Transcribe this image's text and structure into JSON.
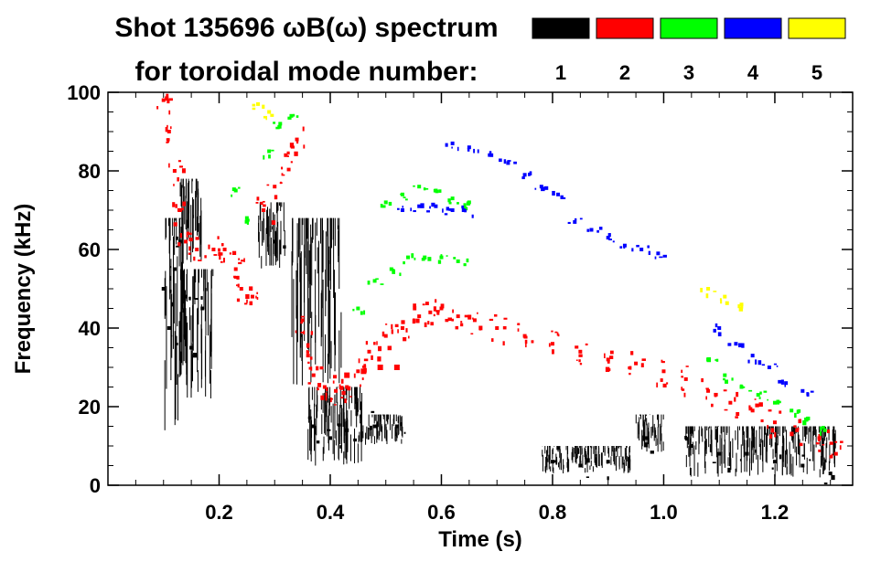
{
  "chart_data": {
    "type": "scatter",
    "title_line1": "Shot 135696 ωB(ω) spectrum",
    "title_line2": "for toroidal mode number:",
    "xlabel": "Time (s)",
    "ylabel": "Frequency (kHz)",
    "xlim": [
      0.0,
      1.34
    ],
    "ylim": [
      0,
      100
    ],
    "x_ticks": [
      0.2,
      0.4,
      0.6,
      0.8,
      1.0,
      1.2
    ],
    "x_tick_labels": [
      "0.2",
      "0.4",
      "0.6",
      "0.8",
      "1.0",
      "1.2"
    ],
    "y_ticks": [
      0,
      20,
      40,
      60,
      80,
      100
    ],
    "y_tick_labels": [
      "0",
      "20",
      "40",
      "60",
      "80",
      "100"
    ],
    "grid": false,
    "legend": [
      {
        "label": "1",
        "color": "#000000"
      },
      {
        "label": "2",
        "color": "#ff0000"
      },
      {
        "label": "3",
        "color": "#00ff00"
      },
      {
        "label": "4",
        "color": "#0000ff"
      },
      {
        "label": "5",
        "color": "#ffff00"
      }
    ],
    "series": [
      {
        "name": "n=1",
        "color": "#000000",
        "style": "noisy",
        "clusters": [
          {
            "x": [
              0.1,
              0.14
            ],
            "y": [
              12,
              68
            ]
          },
          {
            "x": [
              0.13,
              0.19
            ],
            "y": [
              22,
              55
            ]
          },
          {
            "x": [
              0.13,
              0.17
            ],
            "y": [
              55,
              78
            ]
          },
          {
            "x": [
              0.27,
              0.32
            ],
            "y": [
              55,
              72
            ]
          },
          {
            "x": [
              0.33,
              0.42
            ],
            "y": [
              25,
              68
            ]
          },
          {
            "x": [
              0.36,
              0.46
            ],
            "y": [
              5,
              25
            ]
          },
          {
            "x": [
              0.45,
              0.53
            ],
            "y": [
              10,
              18
            ]
          },
          {
            "x": [
              0.78,
              0.94
            ],
            "y": [
              3,
              10
            ]
          },
          {
            "x": [
              0.95,
              1.0
            ],
            "y": [
              8,
              18
            ]
          },
          {
            "x": [
              1.04,
              1.31
            ],
            "y": [
              2,
              15
            ]
          }
        ],
        "points": [
          [
            0.1,
            50
          ],
          [
            0.11,
            40
          ],
          [
            0.12,
            55
          ],
          [
            0.13,
            62
          ],
          [
            0.14,
            48
          ],
          [
            0.15,
            35
          ],
          [
            0.17,
            45
          ],
          [
            0.3,
            62
          ],
          [
            0.37,
            15
          ],
          [
            0.4,
            12
          ],
          [
            0.43,
            14
          ],
          [
            0.48,
            15
          ],
          [
            0.52,
            15
          ],
          [
            0.8,
            6
          ],
          [
            0.85,
            5
          ],
          [
            0.9,
            6
          ],
          [
            0.97,
            12
          ],
          [
            1.05,
            10
          ],
          [
            1.1,
            8
          ],
          [
            1.15,
            8
          ],
          [
            1.2,
            6
          ],
          [
            1.25,
            5
          ],
          [
            1.3,
            3
          ]
        ]
      },
      {
        "name": "n=2",
        "color": "#ff0000",
        "style": "band",
        "points": [
          [
            0.1,
            98
          ],
          [
            0.11,
            90
          ],
          [
            0.12,
            80
          ],
          [
            0.13,
            70
          ],
          [
            0.14,
            62
          ],
          [
            0.16,
            60
          ],
          [
            0.19,
            60
          ],
          [
            0.21,
            60
          ],
          [
            0.23,
            55
          ],
          [
            0.24,
            50
          ],
          [
            0.26,
            48
          ],
          [
            0.28,
            70
          ],
          [
            0.3,
            76
          ],
          [
            0.32,
            84
          ],
          [
            0.34,
            88
          ],
          [
            0.35,
            42
          ],
          [
            0.36,
            33
          ],
          [
            0.37,
            28
          ],
          [
            0.39,
            25
          ],
          [
            0.41,
            24
          ],
          [
            0.43,
            25
          ],
          [
            0.45,
            29
          ],
          [
            0.47,
            34
          ],
          [
            0.5,
            38
          ],
          [
            0.53,
            40
          ],
          [
            0.56,
            43
          ],
          [
            0.58,
            44
          ],
          [
            0.6,
            45
          ],
          [
            0.63,
            43
          ],
          [
            0.66,
            42
          ],
          [
            0.7,
            40
          ],
          [
            0.75,
            38
          ],
          [
            0.8,
            36
          ],
          [
            0.85,
            34
          ],
          [
            0.9,
            32
          ],
          [
            0.95,
            31
          ],
          [
            1.0,
            29
          ],
          [
            1.04,
            27
          ],
          [
            1.08,
            24
          ],
          [
            1.12,
            21
          ],
          [
            1.16,
            19
          ],
          [
            1.2,
            16
          ],
          [
            1.24,
            14
          ],
          [
            1.28,
            12
          ],
          [
            1.31,
            8
          ]
        ],
        "band_points": [
          [
            0.43,
            28
          ],
          [
            0.46,
            29
          ],
          [
            0.49,
            30
          ],
          [
            0.52,
            30
          ]
        ]
      },
      {
        "name": "n=3",
        "color": "#00ff00",
        "style": "trace",
        "points": [
          [
            0.23,
            75
          ],
          [
            0.25,
            68
          ],
          [
            0.29,
            85
          ],
          [
            0.31,
            92
          ],
          [
            0.33,
            94
          ],
          [
            0.45,
            45
          ],
          [
            0.48,
            52
          ],
          [
            0.51,
            55
          ],
          [
            0.54,
            58
          ],
          [
            0.57,
            58
          ],
          [
            0.6,
            58
          ],
          [
            0.63,
            57
          ],
          [
            0.5,
            72
          ],
          [
            0.53,
            74
          ],
          [
            0.56,
            76
          ],
          [
            0.59,
            75
          ],
          [
            0.62,
            73
          ],
          [
            0.65,
            72
          ],
          [
            1.08,
            32
          ],
          [
            1.11,
            28
          ],
          [
            1.14,
            25
          ],
          [
            1.17,
            23
          ],
          [
            1.2,
            21
          ],
          [
            1.23,
            19
          ],
          [
            1.26,
            17
          ],
          [
            1.29,
            14
          ]
        ]
      },
      {
        "name": "n=4",
        "color": "#0000ff",
        "style": "trace",
        "points": [
          [
            0.53,
            70
          ],
          [
            0.56,
            71
          ],
          [
            0.59,
            71
          ],
          [
            0.62,
            70
          ],
          [
            0.64,
            70
          ],
          [
            0.62,
            87
          ],
          [
            0.65,
            86
          ],
          [
            0.69,
            84
          ],
          [
            0.72,
            82
          ],
          [
            0.75,
            79
          ],
          [
            0.78,
            76
          ],
          [
            0.81,
            74
          ],
          [
            0.84,
            67
          ],
          [
            0.87,
            65
          ],
          [
            0.9,
            63
          ],
          [
            0.93,
            61
          ],
          [
            0.96,
            60
          ],
          [
            0.99,
            59
          ],
          [
            1.1,
            40
          ],
          [
            1.13,
            36
          ],
          [
            1.16,
            33
          ],
          [
            1.19,
            30
          ],
          [
            1.22,
            26
          ],
          [
            1.25,
            24
          ]
        ]
      },
      {
        "name": "n=5",
        "color": "#ffff00",
        "style": "trace",
        "points": [
          [
            0.27,
            97
          ],
          [
            0.29,
            95
          ],
          [
            1.08,
            50
          ],
          [
            1.11,
            48
          ],
          [
            1.14,
            46
          ]
        ]
      }
    ]
  }
}
